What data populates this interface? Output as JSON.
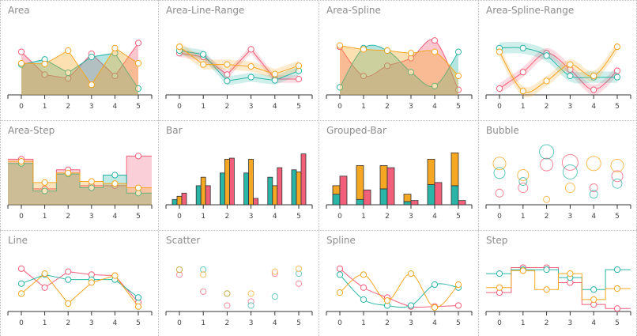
{
  "colors": {
    "red": "#f25f7a",
    "teal": "#2ab5a6",
    "yellow": "#f5a623"
  },
  "chart_data": [
    {
      "type": "area",
      "title": "Area",
      "x": [
        0,
        1,
        2,
        3,
        4,
        5
      ],
      "ylim": [
        0,
        10
      ],
      "series": [
        {
          "color": "red",
          "values": [
            6.8,
            3.2,
            2.6,
            6.5,
            3.0,
            8.2
          ],
          "kind": "area"
        },
        {
          "color": "teal",
          "values": [
            4.8,
            5.6,
            3.5,
            6.0,
            6.6,
            1.0
          ],
          "kind": "area"
        },
        {
          "color": "yellow",
          "values": [
            5.0,
            4.9,
            7.0,
            1.6,
            7.4,
            5.0
          ],
          "kind": "area"
        }
      ]
    },
    {
      "type": "area-line-range",
      "title": "Area-Line-Range",
      "x": [
        0,
        1,
        2,
        3,
        4,
        5
      ],
      "ylim": [
        0,
        10
      ],
      "series": [
        {
          "color": "red",
          "values": [
            6.6,
            6.0,
            3.2,
            7.2,
            2.5,
            2.5
          ],
          "spread": 0.6,
          "kind": "range"
        },
        {
          "color": "teal",
          "values": [
            7.0,
            6.4,
            2.2,
            2.8,
            2.3,
            3.8
          ],
          "spread": 0.7,
          "kind": "range"
        },
        {
          "color": "yellow",
          "values": [
            7.6,
            4.8,
            4.8,
            4.5,
            3.3,
            4.6
          ],
          "spread": 0.8,
          "kind": "range"
        }
      ]
    },
    {
      "type": "area-spline",
      "title": "Area-Spline",
      "x": [
        0,
        1,
        2,
        3,
        4,
        5
      ],
      "ylim": [
        0,
        10
      ],
      "series": [
        {
          "color": "red",
          "values": [
            7.6,
            3.0,
            4.6,
            5.8,
            8.6,
            0.8
          ],
          "kind": "areaspline"
        },
        {
          "color": "teal",
          "values": [
            1.2,
            7.4,
            7.0,
            3.6,
            1.4,
            6.8
          ],
          "kind": "areaspline"
        },
        {
          "color": "yellow",
          "values": [
            7.8,
            7.2,
            7.0,
            6.6,
            6.8,
            3.0
          ],
          "kind": "areaspline"
        }
      ]
    },
    {
      "type": "area-spline-range",
      "title": "Area-Spline-Range",
      "x": [
        0,
        1,
        2,
        3,
        4,
        5
      ],
      "ylim": [
        0,
        10
      ],
      "series": [
        {
          "color": "red",
          "values": [
            1.0,
            3.6,
            6.6,
            4.0,
            0.8,
            3.8
          ],
          "spread": 0.8,
          "kind": "range-spline"
        },
        {
          "color": "teal",
          "values": [
            7.4,
            7.4,
            6.2,
            3.0,
            2.8,
            2.8
          ],
          "spread": 0.9,
          "kind": "range-spline"
        },
        {
          "color": "yellow",
          "values": [
            6.8,
            0.6,
            2.2,
            4.8,
            3.0,
            7.6
          ],
          "spread": 0.8,
          "kind": "range-spline"
        }
      ]
    },
    {
      "type": "area-step",
      "title": "Area-Step",
      "x": [
        0,
        1,
        2,
        3,
        4,
        5
      ],
      "ylim": [
        0,
        10
      ],
      "series": [
        {
          "color": "red",
          "values": [
            8.6,
            3.0,
            6.6,
            3.6,
            3.6,
            9.2
          ],
          "kind": "areastep"
        },
        {
          "color": "teal",
          "values": [
            7.8,
            2.6,
            5.8,
            3.2,
            5.6,
            2.2
          ],
          "kind": "areastep"
        },
        {
          "color": "yellow",
          "values": [
            8.2,
            4.2,
            6.0,
            4.4,
            4.0,
            3.2
          ],
          "kind": "areastep"
        }
      ]
    },
    {
      "type": "bar",
      "title": "Bar",
      "x": [
        0,
        1,
        2,
        3,
        4,
        5
      ],
      "ylim": [
        0,
        10
      ],
      "series": [
        {
          "color": "teal",
          "values": [
            1.0,
            3.6,
            6.0,
            6.0,
            5.2,
            6.6
          ]
        },
        {
          "color": "yellow",
          "values": [
            1.6,
            5.2,
            8.6,
            8.6,
            3.6,
            6.2
          ]
        },
        {
          "color": "red",
          "values": [
            2.2,
            3.6,
            8.8,
            1.2,
            7.0,
            9.6
          ]
        }
      ]
    },
    {
      "type": "grouped-bar",
      "title": "Grouped-Bar",
      "x": [
        0,
        1,
        2,
        3,
        4,
        5
      ],
      "ylim": [
        0,
        10
      ],
      "series": [
        {
          "color": "teal",
          "values": [
            2.0,
            1.0,
            3.0,
            0.6,
            3.8,
            3.6
          ]
        },
        {
          "color": "yellow",
          "values": [
            1.6,
            6.4,
            4.4,
            1.4,
            4.8,
            6.2
          ]
        },
        {
          "color": "red",
          "values": [
            5.4,
            2.8,
            7.0,
            0.8,
            4.2,
            0.8
          ]
        }
      ]
    },
    {
      "type": "bubble",
      "title": "Bubble",
      "x": [
        0,
        1,
        2,
        3,
        4,
        5
      ],
      "ylim": [
        0,
        10
      ],
      "series": [
        {
          "color": "red",
          "points": [
            [
              0,
              2.2,
              5
            ],
            [
              1,
              3.2,
              6
            ],
            [
              2,
              7.6,
              8
            ],
            [
              3,
              8.0,
              10
            ],
            [
              4,
              3.2,
              5
            ],
            [
              5,
              5.4,
              7
            ]
          ]
        },
        {
          "color": "teal",
          "points": [
            [
              0,
              6.0,
              7
            ],
            [
              1,
              4.4,
              5
            ],
            [
              2,
              10.0,
              9
            ],
            [
              3,
              6.2,
              9
            ],
            [
              4,
              2.0,
              5
            ],
            [
              5,
              4.0,
              6
            ]
          ]
        },
        {
          "color": "yellow",
          "points": [
            [
              0,
              7.8,
              8
            ],
            [
              1,
              5.6,
              7
            ],
            [
              2,
              1.0,
              4
            ],
            [
              3,
              3.2,
              6
            ],
            [
              4,
              7.8,
              9
            ],
            [
              5,
              7.4,
              8
            ]
          ]
        }
      ]
    },
    {
      "type": "line",
      "title": "Line",
      "x": [
        0,
        1,
        2,
        3,
        4,
        5
      ],
      "ylim": [
        0,
        10
      ],
      "series": [
        {
          "color": "red",
          "values": [
            8.6,
            4.8,
            8.0,
            7.4,
            7.2,
            1.8
          ]
        },
        {
          "color": "teal",
          "values": [
            5.6,
            7.4,
            6.4,
            6.4,
            6.4,
            2.8
          ]
        },
        {
          "color": "yellow",
          "values": [
            3.6,
            7.6,
            1.6,
            5.8,
            7.2,
            1.0
          ]
        }
      ]
    },
    {
      "type": "scatter",
      "title": "Scatter",
      "x": [
        0,
        1,
        2,
        3,
        4,
        5
      ],
      "ylim": [
        0,
        10
      ],
      "series": [
        {
          "color": "red",
          "values": [
            7.4,
            4.0,
            1.2,
            2.0,
            7.6,
            5.6
          ]
        },
        {
          "color": "teal",
          "values": [
            8.4,
            8.4,
            3.6,
            1.2,
            3.0,
            7.6
          ]
        },
        {
          "color": "yellow",
          "values": [
            8.4,
            7.4,
            3.6,
            3.6,
            8.0,
            8.6
          ]
        }
      ]
    },
    {
      "type": "spline",
      "title": "Spline",
      "x": [
        0,
        1,
        2,
        3,
        4,
        5
      ],
      "ylim": [
        0,
        10
      ],
      "series": [
        {
          "color": "red",
          "values": [
            8.6,
            4.8,
            2.8,
            1.0,
            1.0,
            1.2
          ]
        },
        {
          "color": "teal",
          "values": [
            7.4,
            2.4,
            1.2,
            1.2,
            5.4,
            4.8
          ]
        },
        {
          "color": "yellow",
          "values": [
            3.8,
            7.4,
            2.2,
            7.6,
            0.8,
            5.4
          ]
        }
      ]
    },
    {
      "type": "step",
      "title": "Step",
      "x": [
        0,
        1,
        2,
        3,
        4,
        5
      ],
      "ylim": [
        0,
        10
      ],
      "series": [
        {
          "color": "red",
          "values": [
            3.8,
            8.8,
            8.8,
            5.8,
            1.4,
            0.6
          ]
        },
        {
          "color": "teal",
          "values": [
            7.6,
            8.4,
            8.4,
            6.8,
            4.4,
            8.4
          ]
        },
        {
          "color": "yellow",
          "values": [
            4.8,
            8.2,
            4.4,
            7.6,
            2.4,
            4.6
          ]
        }
      ]
    }
  ]
}
